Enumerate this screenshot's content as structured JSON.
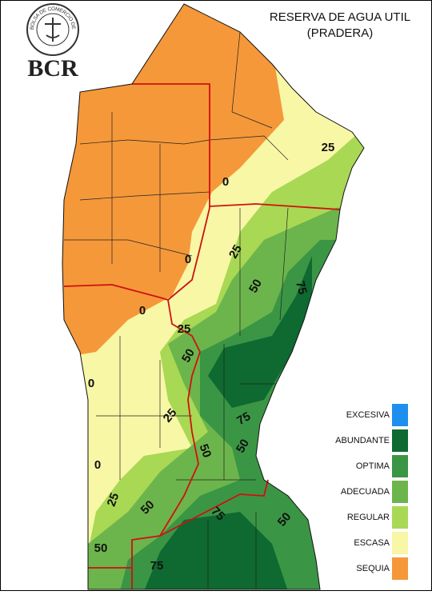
{
  "logo": {
    "ring_text": "BOLSA DE COMERCIO DE ROSARIO",
    "name": "BCR"
  },
  "title": [
    "RESERVA DE AGUA UTIL",
    "(PRADERA)"
  ],
  "legend": [
    {
      "label": "EXCESIVA",
      "color": "#1f8fef"
    },
    {
      "label": "ABUNDANTE",
      "color": "#0e6a30"
    },
    {
      "label": "OPTIMA",
      "color": "#3a9645"
    },
    {
      "label": "ADECUADA",
      "color": "#6cb54c"
    },
    {
      "label": "REGULAR",
      "color": "#a9d854"
    },
    {
      "label": "ESCASA",
      "color": "#f7f7a6"
    },
    {
      "label": "SEQUIA",
      "color": "#f5983a"
    }
  ],
  "contour_labels": [
    25,
    0,
    25,
    0,
    50,
    75,
    0,
    25,
    50,
    0,
    25,
    75,
    50,
    50,
    0,
    25,
    50,
    75,
    50,
    50,
    75
  ]
}
